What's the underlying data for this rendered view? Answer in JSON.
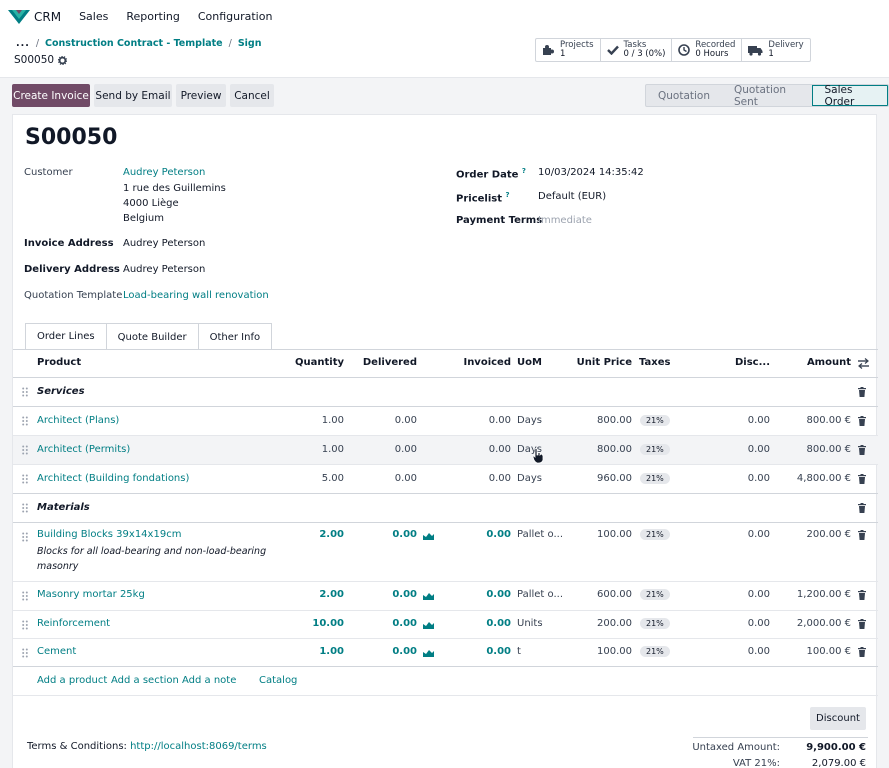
{
  "nav": {
    "app_name": "CRM",
    "menu": [
      "Sales",
      "Reporting",
      "Configuration"
    ]
  },
  "breadcrumb": {
    "dots": "...",
    "items": [
      "Construction Contract - Template",
      "Sign"
    ],
    "record": "S00050"
  },
  "smart_buttons": [
    {
      "icon": "puzzle-icon",
      "label": "Projects",
      "value": "1"
    },
    {
      "icon": "check-icon",
      "label": "Tasks",
      "value": "0 / 3 (0%)"
    },
    {
      "icon": "clock-icon",
      "label": "Recorded",
      "value": "0 Hours"
    },
    {
      "icon": "truck-icon",
      "label": "Delivery",
      "value": "1"
    }
  ],
  "actions": {
    "create_invoice": "Create Invoice",
    "send_email": "Send by Email",
    "preview": "Preview",
    "cancel": "Cancel"
  },
  "status": {
    "stages": [
      "Quotation",
      "Quotation Sent",
      "Sales Order"
    ],
    "active": "Sales Order"
  },
  "form": {
    "title": "S00050",
    "customer_label": "Customer",
    "customer_name": "Audrey Peterson",
    "address_lines": [
      "1 rue des Guillemins",
      "4000 Liège",
      "Belgium"
    ],
    "invoice_address_label": "Invoice Address",
    "invoice_address": "Audrey Peterson",
    "delivery_address_label": "Delivery Address",
    "delivery_address": "Audrey Peterson",
    "quotation_template_label": "Quotation Template",
    "quotation_template": "Load-bearing wall renovation",
    "order_date_label": "Order Date",
    "order_date": "10/03/2024 14:35:42",
    "pricelist_label": "Pricelist",
    "pricelist": "Default (EUR)",
    "payment_terms_label": "Payment Terms",
    "payment_terms": "Immediate",
    "help_mark": "?"
  },
  "tabs": [
    "Order Lines",
    "Quote Builder",
    "Other Info"
  ],
  "table": {
    "headers": {
      "product": "Product",
      "quantity": "Quantity",
      "delivered": "Delivered",
      "invoiced": "Invoiced",
      "uom": "UoM",
      "unit_price": "Unit Price",
      "taxes": "Taxes",
      "discount": "Disc...",
      "amount": "Amount"
    },
    "sections": [
      "Services",
      "Materials"
    ],
    "lines": [
      {
        "product": "Architect (Plans)",
        "qty": "1.00",
        "delivered": "0.00",
        "invoiced": "0.00",
        "uom": "Days",
        "price": "800.00",
        "tax": "21%",
        "disc": "0.00",
        "amount": "800.00 €"
      },
      {
        "product": "Architect (Permits)",
        "qty": "1.00",
        "delivered": "0.00",
        "invoiced": "0.00",
        "uom": "Days",
        "price": "800.00",
        "tax": "21%",
        "disc": "0.00",
        "amount": "800.00 €"
      },
      {
        "product": "Architect (Building fondations)",
        "qty": "5.00",
        "delivered": "0.00",
        "invoiced": "0.00",
        "uom": "Days",
        "price": "960.00",
        "tax": "21%",
        "disc": "0.00",
        "amount": "4,800.00 €"
      },
      {
        "product": "Building Blocks 39x14x19cm",
        "desc1": "Blocks for all load-bearing and non-load-bearing",
        "desc2": "masonry",
        "qty": "2.00",
        "delivered": "0.00",
        "invoiced": "0.00",
        "uom": "Pallet o...",
        "price": "100.00",
        "tax": "21%",
        "disc": "0.00",
        "amount": "200.00 €"
      },
      {
        "product": "Masonry mortar 25kg",
        "qty": "2.00",
        "delivered": "0.00",
        "invoiced": "0.00",
        "uom": "Pallet o...",
        "price": "600.00",
        "tax": "21%",
        "disc": "0.00",
        "amount": "1,200.00 €"
      },
      {
        "product": "Reinforcement",
        "qty": "10.00",
        "delivered": "0.00",
        "invoiced": "0.00",
        "uom": "Units",
        "price": "200.00",
        "tax": "21%",
        "disc": "0.00",
        "amount": "2,000.00 €"
      },
      {
        "product": "Cement",
        "qty": "1.00",
        "delivered": "0.00",
        "invoiced": "0.00",
        "uom": "t",
        "price": "100.00",
        "tax": "21%",
        "disc": "0.00",
        "amount": "100.00 €"
      }
    ],
    "add_links": {
      "product": "Add a product",
      "section": "Add a section",
      "note": "Add a note",
      "catalog": "Catalog"
    }
  },
  "footer": {
    "discount_button": "Discount",
    "terms_label": "Terms & Conditions:",
    "terms_link": "http://localhost:8069/terms",
    "untaxed_label": "Untaxed Amount:",
    "untaxed_value": "9,900.00 €",
    "vat_label": "VAT 21%:",
    "vat_value": "2,079.00 €"
  },
  "colors": {
    "brand": "#714b67",
    "accent": "#017e84"
  }
}
